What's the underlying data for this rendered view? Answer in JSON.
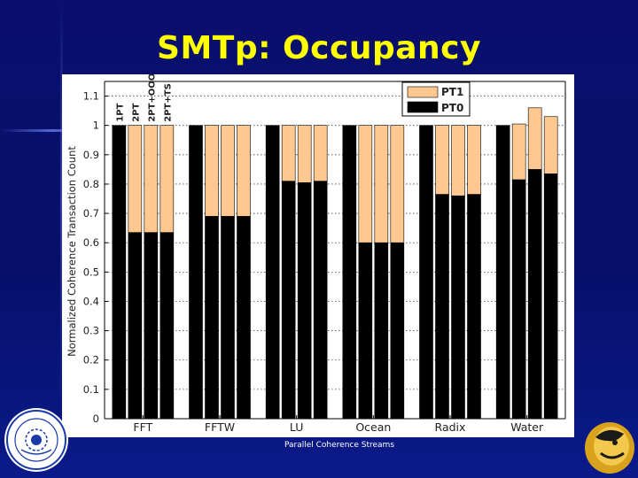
{
  "slide": {
    "title": "SMTp: Occupancy",
    "footer": "Parallel Coherence Streams",
    "background_color": "#0a0f6e",
    "title_color": "#ffff00"
  },
  "logos": {
    "left": "institute-seal-logo",
    "right": "golden-mascot-logo"
  },
  "chart_data": {
    "type": "bar",
    "stacked": true,
    "categories": [
      "FFT",
      "FFTW",
      "LU",
      "Ocean",
      "Radix",
      "Water"
    ],
    "configurations": [
      "1PT",
      "2PT",
      "2PT+OOO",
      "2PT+TS"
    ],
    "series": [
      {
        "name": "PT0",
        "color": "#000000",
        "values": [
          [
            1.0,
            0.635,
            0.635,
            0.635
          ],
          [
            1.0,
            0.69,
            0.69,
            0.69
          ],
          [
            1.0,
            0.81,
            0.805,
            0.81
          ],
          [
            1.0,
            0.6,
            0.6,
            0.6
          ],
          [
            1.0,
            0.765,
            0.76,
            0.765
          ],
          [
            1.0,
            0.815,
            0.85,
            0.835
          ]
        ]
      },
      {
        "name": "PT1",
        "color": "#ffc890",
        "values": [
          [
            0,
            0.365,
            0.365,
            0.365
          ],
          [
            0,
            0.31,
            0.31,
            0.31
          ],
          [
            0,
            0.19,
            0.195,
            0.19
          ],
          [
            0,
            0.4,
            0.4,
            0.4
          ],
          [
            0,
            0.235,
            0.24,
            0.235
          ],
          [
            0,
            0.19,
            0.21,
            0.195
          ]
        ]
      }
    ],
    "ylabel": "Normalized Coherence Transaction Count",
    "xlabel": "",
    "ylim": [
      0,
      1.15
    ],
    "yticks": [
      "0",
      "0.1",
      "0.2",
      "0.3",
      "0.4",
      "0.5",
      "0.6",
      "0.7",
      "0.8",
      "0.9",
      "1",
      "1.1"
    ],
    "grid": true,
    "legend": "top-right",
    "legend_order": [
      "PT1",
      "PT0"
    ]
  }
}
